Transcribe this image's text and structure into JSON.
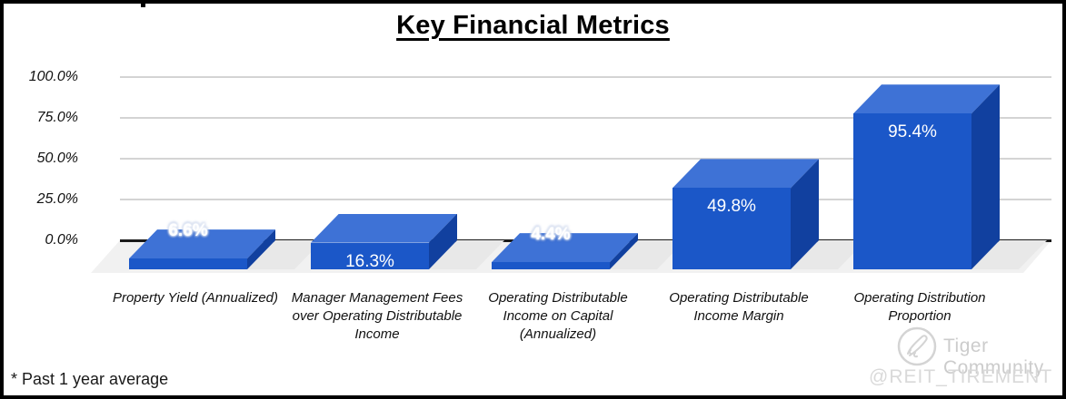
{
  "page": {
    "title": "Key Financial Metrics",
    "footnote": "* Past 1 year average"
  },
  "chart_data": {
    "type": "bar",
    "style": "3d-column",
    "title": "Key Financial Metrics",
    "categories": [
      "Property Yield (Annualized)",
      "Manager Management Fees over Operating Distributable Income",
      "Operating Distributable Income on Capital (Annualized)",
      "Operating Distributable Income Margin",
      "Operating Distribution Proportion"
    ],
    "values": [
      6.6,
      16.3,
      4.4,
      49.8,
      95.4
    ],
    "value_labels": [
      "6.6%",
      "16.3%",
      "4.4%",
      "49.8%",
      "95.4%"
    ],
    "y_tick_labels": [
      "100.0%",
      "75.0%",
      "50.0%",
      "25.0%",
      "0.0%"
    ],
    "ylim": [
      0,
      100
    ],
    "grid": true,
    "legend": "none",
    "xlabel": "",
    "ylabel": "",
    "colors": {
      "bar_front": "#1b57c8",
      "bar_top": "#3e72d6",
      "bar_side": "#11409f",
      "floor": "#f1f1f1",
      "shadow": "#e8e8e8",
      "gridline": "#d4d4d4",
      "axis_line": "#1a1a1a",
      "value_text": "#ffffff",
      "label_text": "#111111"
    }
  },
  "watermark": {
    "community_label": "Tiger Community",
    "handle": "@REIT_TIREMENT",
    "logo": "tiger-logo-icon"
  }
}
